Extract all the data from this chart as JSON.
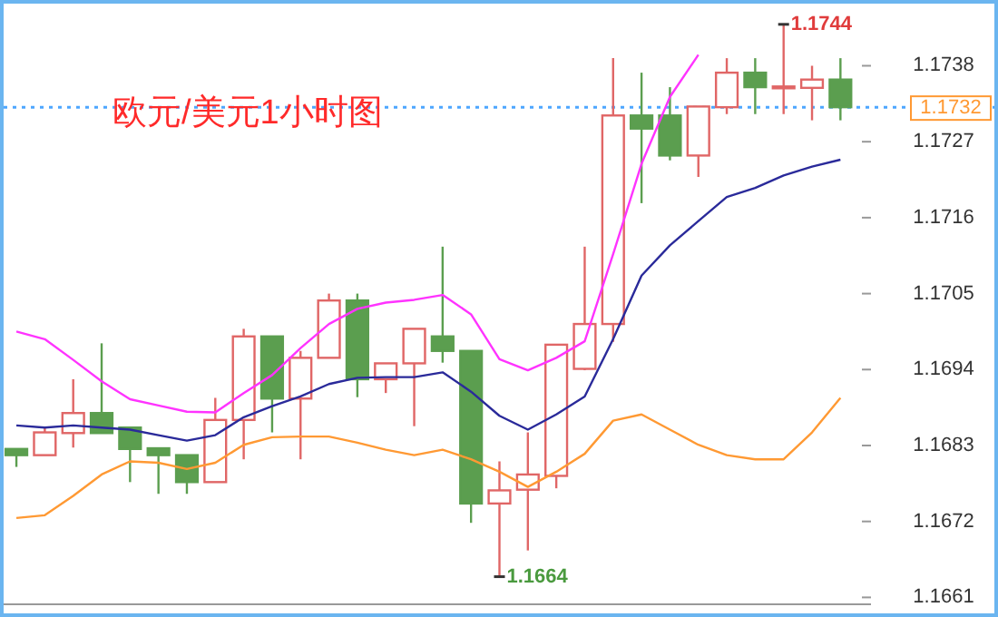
{
  "chart_data": {
    "type": "candlestick",
    "title": "欧元/美元1小时图",
    "categories": [
      null,
      null,
      null,
      null,
      null,
      null,
      null,
      null,
      null,
      null,
      null,
      null,
      null,
      null,
      null,
      null,
      null,
      null,
      null,
      null,
      null,
      null,
      null,
      null,
      null,
      null,
      null,
      null,
      null,
      null
    ],
    "ohlc": [
      [
        1.16825,
        1.16825,
        1.16799,
        1.16816
      ],
      [
        1.16816,
        1.16855,
        1.16816,
        1.16849
      ],
      [
        1.16848,
        1.16926,
        1.16827,
        1.16877
      ],
      [
        1.16877,
        1.16978,
        1.16848,
        1.16848
      ],
      [
        1.16856,
        1.16856,
        1.16777,
        1.16825
      ],
      [
        1.16826,
        1.16826,
        1.1676,
        1.16816
      ],
      [
        1.16816,
        1.16816,
        1.1676,
        1.16777
      ],
      [
        1.16777,
        1.16899,
        1.16777,
        1.16867
      ],
      [
        1.16867,
        1.16999,
        1.1681,
        1.16988
      ],
      [
        1.16988,
        1.16988,
        1.16849,
        1.16898
      ],
      [
        1.16898,
        1.16967,
        1.1681,
        1.16957
      ],
      [
        1.16957,
        1.1705,
        1.16957,
        1.1704
      ],
      [
        1.1704,
        1.1705,
        1.169,
        1.16926
      ],
      [
        1.16926,
        1.16949,
        1.16906,
        1.16949
      ],
      [
        1.16949,
        1.16999,
        1.16858,
        1.16999
      ],
      [
        1.16988,
        1.17118,
        1.1695,
        1.16967
      ],
      [
        1.16967,
        1.16967,
        1.16718,
        1.16746
      ],
      [
        1.16746,
        1.16807,
        1.1664,
        1.16765
      ],
      [
        1.16766,
        1.16849,
        1.16678,
        1.16788
      ],
      [
        1.16786,
        1.16976,
        1.16768,
        1.16976
      ],
      [
        1.16941,
        1.17118,
        1.16939,
        1.17006
      ],
      [
        1.17006,
        1.17391,
        1.1698,
        1.17308
      ],
      [
        1.17308,
        1.1737,
        1.17181,
        1.17289
      ],
      [
        1.17308,
        1.17349,
        1.17243,
        1.1725
      ],
      [
        1.1725,
        1.17321,
        1.17219,
        1.17321
      ],
      [
        1.1732,
        1.17391,
        1.1731,
        1.1737
      ],
      [
        1.1737,
        1.17391,
        1.1731,
        1.17349
      ],
      [
        1.17349,
        1.1744,
        1.1731,
        1.1735
      ],
      [
        1.17348,
        1.1738,
        1.17301,
        1.1736
      ],
      [
        1.1736,
        1.17391,
        1.17301,
        1.1732
      ]
    ],
    "colors": [
      "#5b9e4f",
      "#e06666",
      "#e06666",
      "#5b9e4f",
      "#5b9e4f",
      "#5b9e4f",
      "#5b9e4f",
      "#e06666",
      "#e06666",
      "#5b9e4f",
      "#e06666",
      "#e06666",
      "#5b9e4f",
      "#e06666",
      "#e06666",
      "#5b9e4f",
      "#5b9e4f",
      "#e06666",
      "#e06666",
      "#e06666",
      "#e06666",
      "#e06666",
      "#5b9e4f",
      "#5b9e4f",
      "#e06666",
      "#e06666",
      "#5b9e4f",
      "#e06666",
      "#e06666",
      "#5b9e4f"
    ],
    "series": [
      {
        "type": "line",
        "color": "#ff33ff",
        "values": [
          1.16995,
          1.16984,
          1.16954,
          1.16923,
          1.16897,
          1.16888,
          1.16879,
          1.16878,
          1.16906,
          1.16932,
          1.16971,
          1.17006,
          1.17028,
          1.17037,
          1.17041,
          1.17048,
          1.1702,
          1.16955,
          1.16939,
          1.16957,
          1.16981,
          1.17107,
          1.17238,
          1.17335,
          1.17396,
          null,
          null,
          null,
          null,
          null
        ]
      },
      {
        "type": "line",
        "color": "#2a2a9a",
        "values": [
          1.16859,
          1.16856,
          1.16859,
          1.16856,
          1.16853,
          1.16845,
          1.16837,
          1.16845,
          1.16871,
          1.16887,
          1.16901,
          1.16919,
          1.16928,
          1.16929,
          1.16929,
          1.16936,
          1.16908,
          1.16873,
          1.16853,
          1.16875,
          1.16901,
          1.16984,
          1.17076,
          1.1712,
          1.17155,
          1.1719,
          1.17203,
          1.17221,
          1.17234,
          1.17244
        ]
      },
      {
        "type": "line",
        "color": "#ff9933",
        "values": [
          1.16725,
          1.16729,
          1.16757,
          1.16788,
          1.16807,
          1.16805,
          1.16796,
          1.16805,
          1.16831,
          1.16842,
          1.16843,
          1.16843,
          1.16834,
          1.16824,
          1.16816,
          1.16824,
          1.1681,
          1.16792,
          1.1677,
          1.16792,
          1.16818,
          1.16866,
          1.16875,
          1.16853,
          1.16831,
          1.16816,
          1.1681,
          1.1681,
          1.16849,
          1.16899
        ]
      }
    ],
    "ylim": [
      1.166,
      1.1747
    ],
    "yticks": [
      1.1661,
      1.1672,
      1.1683,
      1.1694,
      1.1705,
      1.1716,
      1.1727,
      1.1738
    ],
    "tick_labels": "y",
    "ref_lines": [
      {
        "axis": "y",
        "value": 1.1732,
        "label": "1.1732",
        "color": "#4da6ff",
        "line_style": "dotted"
      }
    ],
    "annotations": [
      "1.1744",
      "1.1664"
    ]
  }
}
